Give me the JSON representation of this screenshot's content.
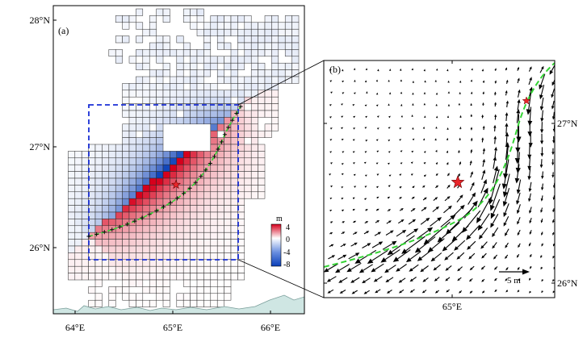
{
  "panel_a": {
    "label": "(a)",
    "lat_labels": [
      "28°N",
      "27°N",
      "26°N"
    ],
    "lon_labels": [
      "64°E",
      "65°E",
      "66°E"
    ],
    "colorbar": {
      "unit": "m",
      "ticks": [
        "4",
        "0",
        "-4",
        "-8"
      ],
      "range": [
        -8,
        4
      ],
      "colors": {
        "min": "#0a3fb8",
        "mid": "#ffffff",
        "max": "#d6001c"
      }
    },
    "grid_color": "#2a2a2a",
    "box_color": "#1a2fd6",
    "rupture_color": "#35d435",
    "epicenter_color": "#e8262b",
    "land_color": "#cfe6e3"
  },
  "panel_b": {
    "label": "(b)",
    "lat_labels": [
      "27°N",
      "26°N"
    ],
    "lon_labels": [
      "65°E"
    ],
    "scale_label": "5 m",
    "rupture_color": "#35d435",
    "epicenter_color": "#e8262b"
  }
}
